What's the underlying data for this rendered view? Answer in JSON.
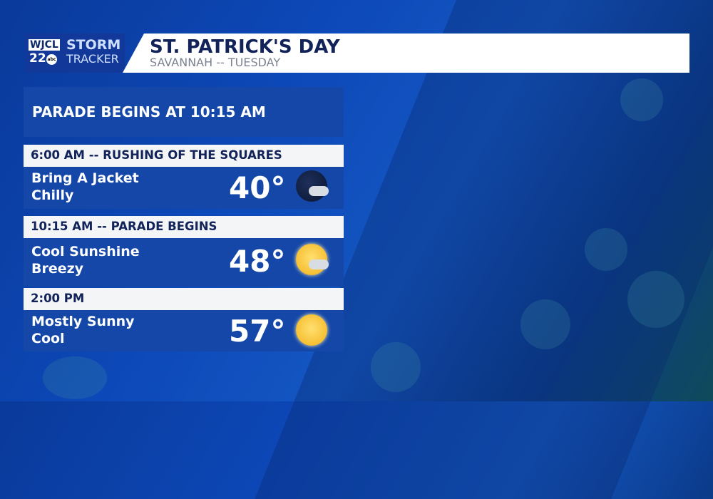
{
  "logo": {
    "station": "WJCL",
    "channel": "22",
    "network": "abc",
    "brand_line1": "STORM",
    "brand_line2": "TRACKER"
  },
  "header": {
    "title": "ST. PATRICK'S DAY",
    "subtitle": "SAVANNAH -- TUESDAY"
  },
  "banner": "PARADE BEGINS AT 10:15 AM",
  "rows": [
    {
      "time": "6:00 AM -- RUSHING OF THE SQUARES",
      "line1": "Bring A Jacket",
      "line2": "Chilly",
      "temp": "40°",
      "icon": "night-partly-cloudy-icon"
    },
    {
      "time": "10:15 AM -- PARADE BEGINS",
      "line1": "Cool Sunshine",
      "line2": "Breezy",
      "temp": "48°",
      "icon": "sun-partly-cloudy-icon"
    },
    {
      "time": "2:00 PM",
      "line1": "Mostly Sunny",
      "line2": "Cool",
      "temp": "57°",
      "icon": "sun-icon"
    }
  ],
  "colors": {
    "panel": "#1447a8",
    "title": "#12235a",
    "header_bg": "#f4f5f7"
  }
}
